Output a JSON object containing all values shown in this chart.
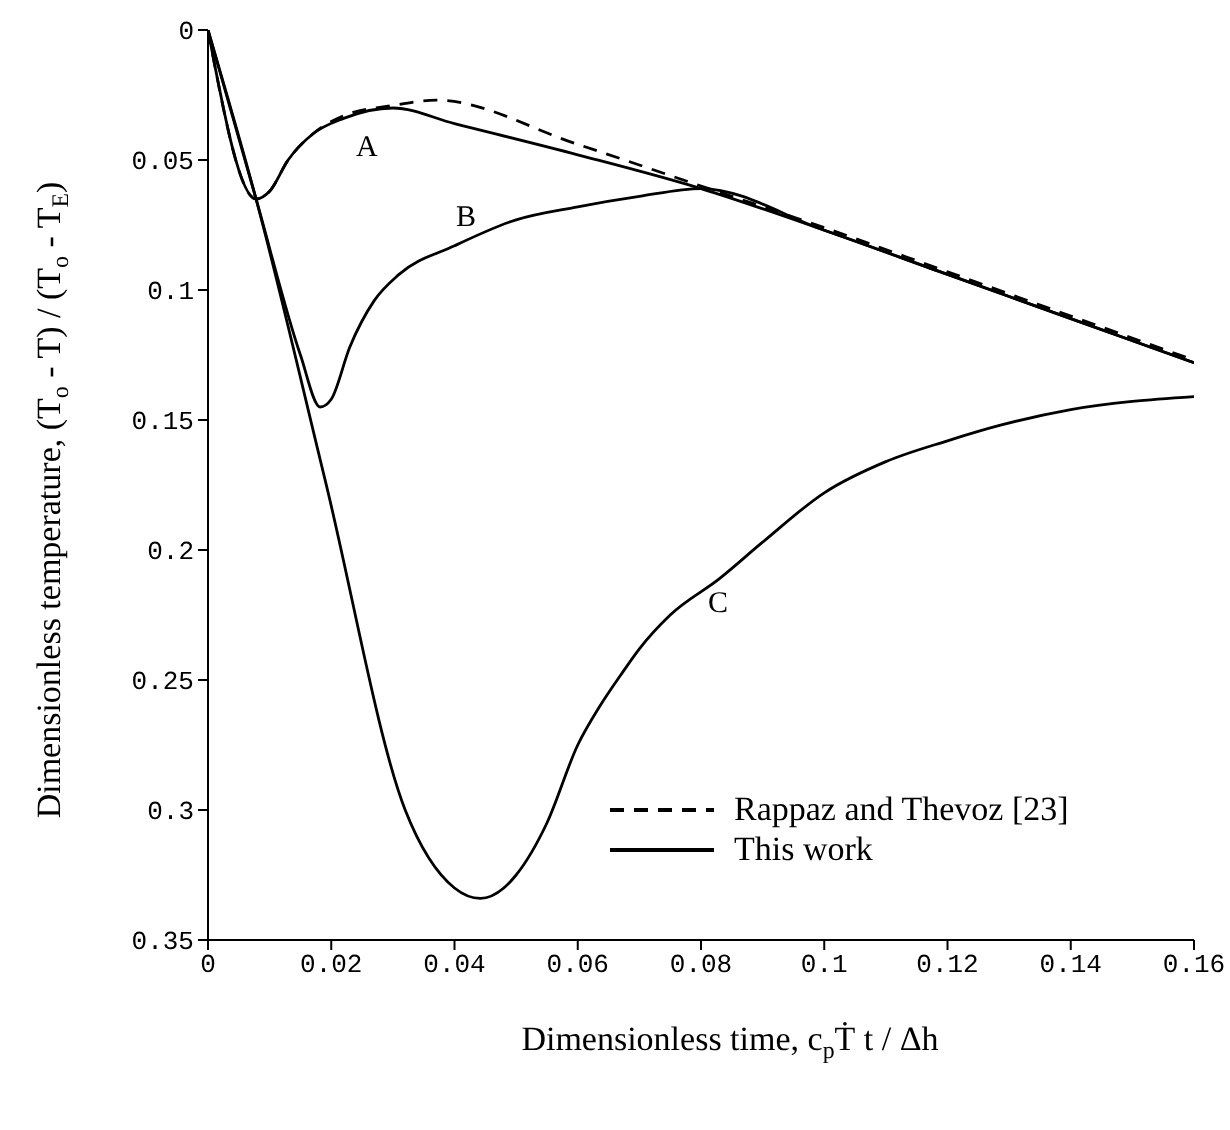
{
  "chart_data": {
    "type": "line",
    "xlabel": "Dimensionless time, c$_{p}$Ṫ t / Δh",
    "ylabel": "Dimensionless temperature, (T$_{o}$ - T) / (T$_{o}$ - T$_{E}$)",
    "xlim": [
      0,
      0.16
    ],
    "xticks": [
      0,
      0.02,
      0.04,
      0.06,
      0.08,
      0.1,
      0.12,
      0.14,
      0.16
    ],
    "ylim": [
      0.35,
      0
    ],
    "yticks": [
      0,
      0.05,
      0.1,
      0.15,
      0.2,
      0.25,
      0.3,
      0.35
    ],
    "grid": false,
    "legend": "bottom right",
    "marker": "none",
    "series": [
      {
        "name": "Rappaz and Thevoz [23]",
        "color": "#000000",
        "line_style": "dashed",
        "x": [
          0,
          0.0078,
          0.01,
          0.013,
          0.017,
          0.022,
          0.03,
          0.037,
          0.06,
          0.08,
          0.1,
          0.12,
          0.14,
          0.16
        ],
        "values": [
          0,
          0.065,
          0.062,
          0.05,
          0.04,
          0.033,
          0.029,
          0.027,
          0.044,
          0.06,
          0.076,
          0.093,
          0.11,
          0.127
        ]
      },
      {
        "name": "This work",
        "color": "#000000",
        "line_style": "solid",
        "x": [
          0,
          0.0078,
          0.01,
          0.013,
          0.017,
          0.022,
          0.03,
          0.04,
          0.06,
          0.08,
          0.1,
          0.12,
          0.14,
          0.16
        ],
        "values": [
          0,
          0.065,
          0.062,
          0.05,
          0.04,
          0.034,
          0.03,
          0.036,
          0.048,
          0.061,
          0.077,
          0.094,
          0.111,
          0.128
        ]
      },
      {
        "color": "#000000",
        "line_style": "solid",
        "x": [
          0,
          0.0078,
          0.015,
          0.0182,
          0.02,
          0.023,
          0.027,
          0.031,
          0.04,
          0.05,
          0.06,
          0.07,
          0.08,
          0.1,
          0.12,
          0.14,
          0.16
        ],
        "values": [
          0,
          0.065,
          0.125,
          0.145,
          0.142,
          0.122,
          0.104,
          0.094,
          0.083,
          0.073,
          0.068,
          0.064,
          0.061,
          0.077,
          0.094,
          0.111,
          0.128
        ]
      },
      {
        "color": "#000000",
        "line_style": "solid",
        "x": [
          0,
          0.0078,
          0.019,
          0.032,
          0.04,
          0.0442,
          0.048,
          0.05,
          0.055,
          0.06,
          0.0636,
          0.067,
          0.07,
          0.075,
          0.083,
          0.09,
          0.1,
          0.11,
          0.12,
          0.1286,
          0.14,
          0.16
        ],
        "values": [
          0,
          0.065,
          0.173,
          0.3,
          0.33,
          0.334,
          0.33,
          0.325,
          0.305,
          0.275,
          0.26,
          0.248,
          0.238,
          0.225,
          0.211,
          0.197,
          0.178,
          0.166,
          0.158,
          0.152,
          0.146,
          0.141
        ]
      }
    ],
    "annotations": [
      "A",
      "B",
      "C"
    ]
  }
}
